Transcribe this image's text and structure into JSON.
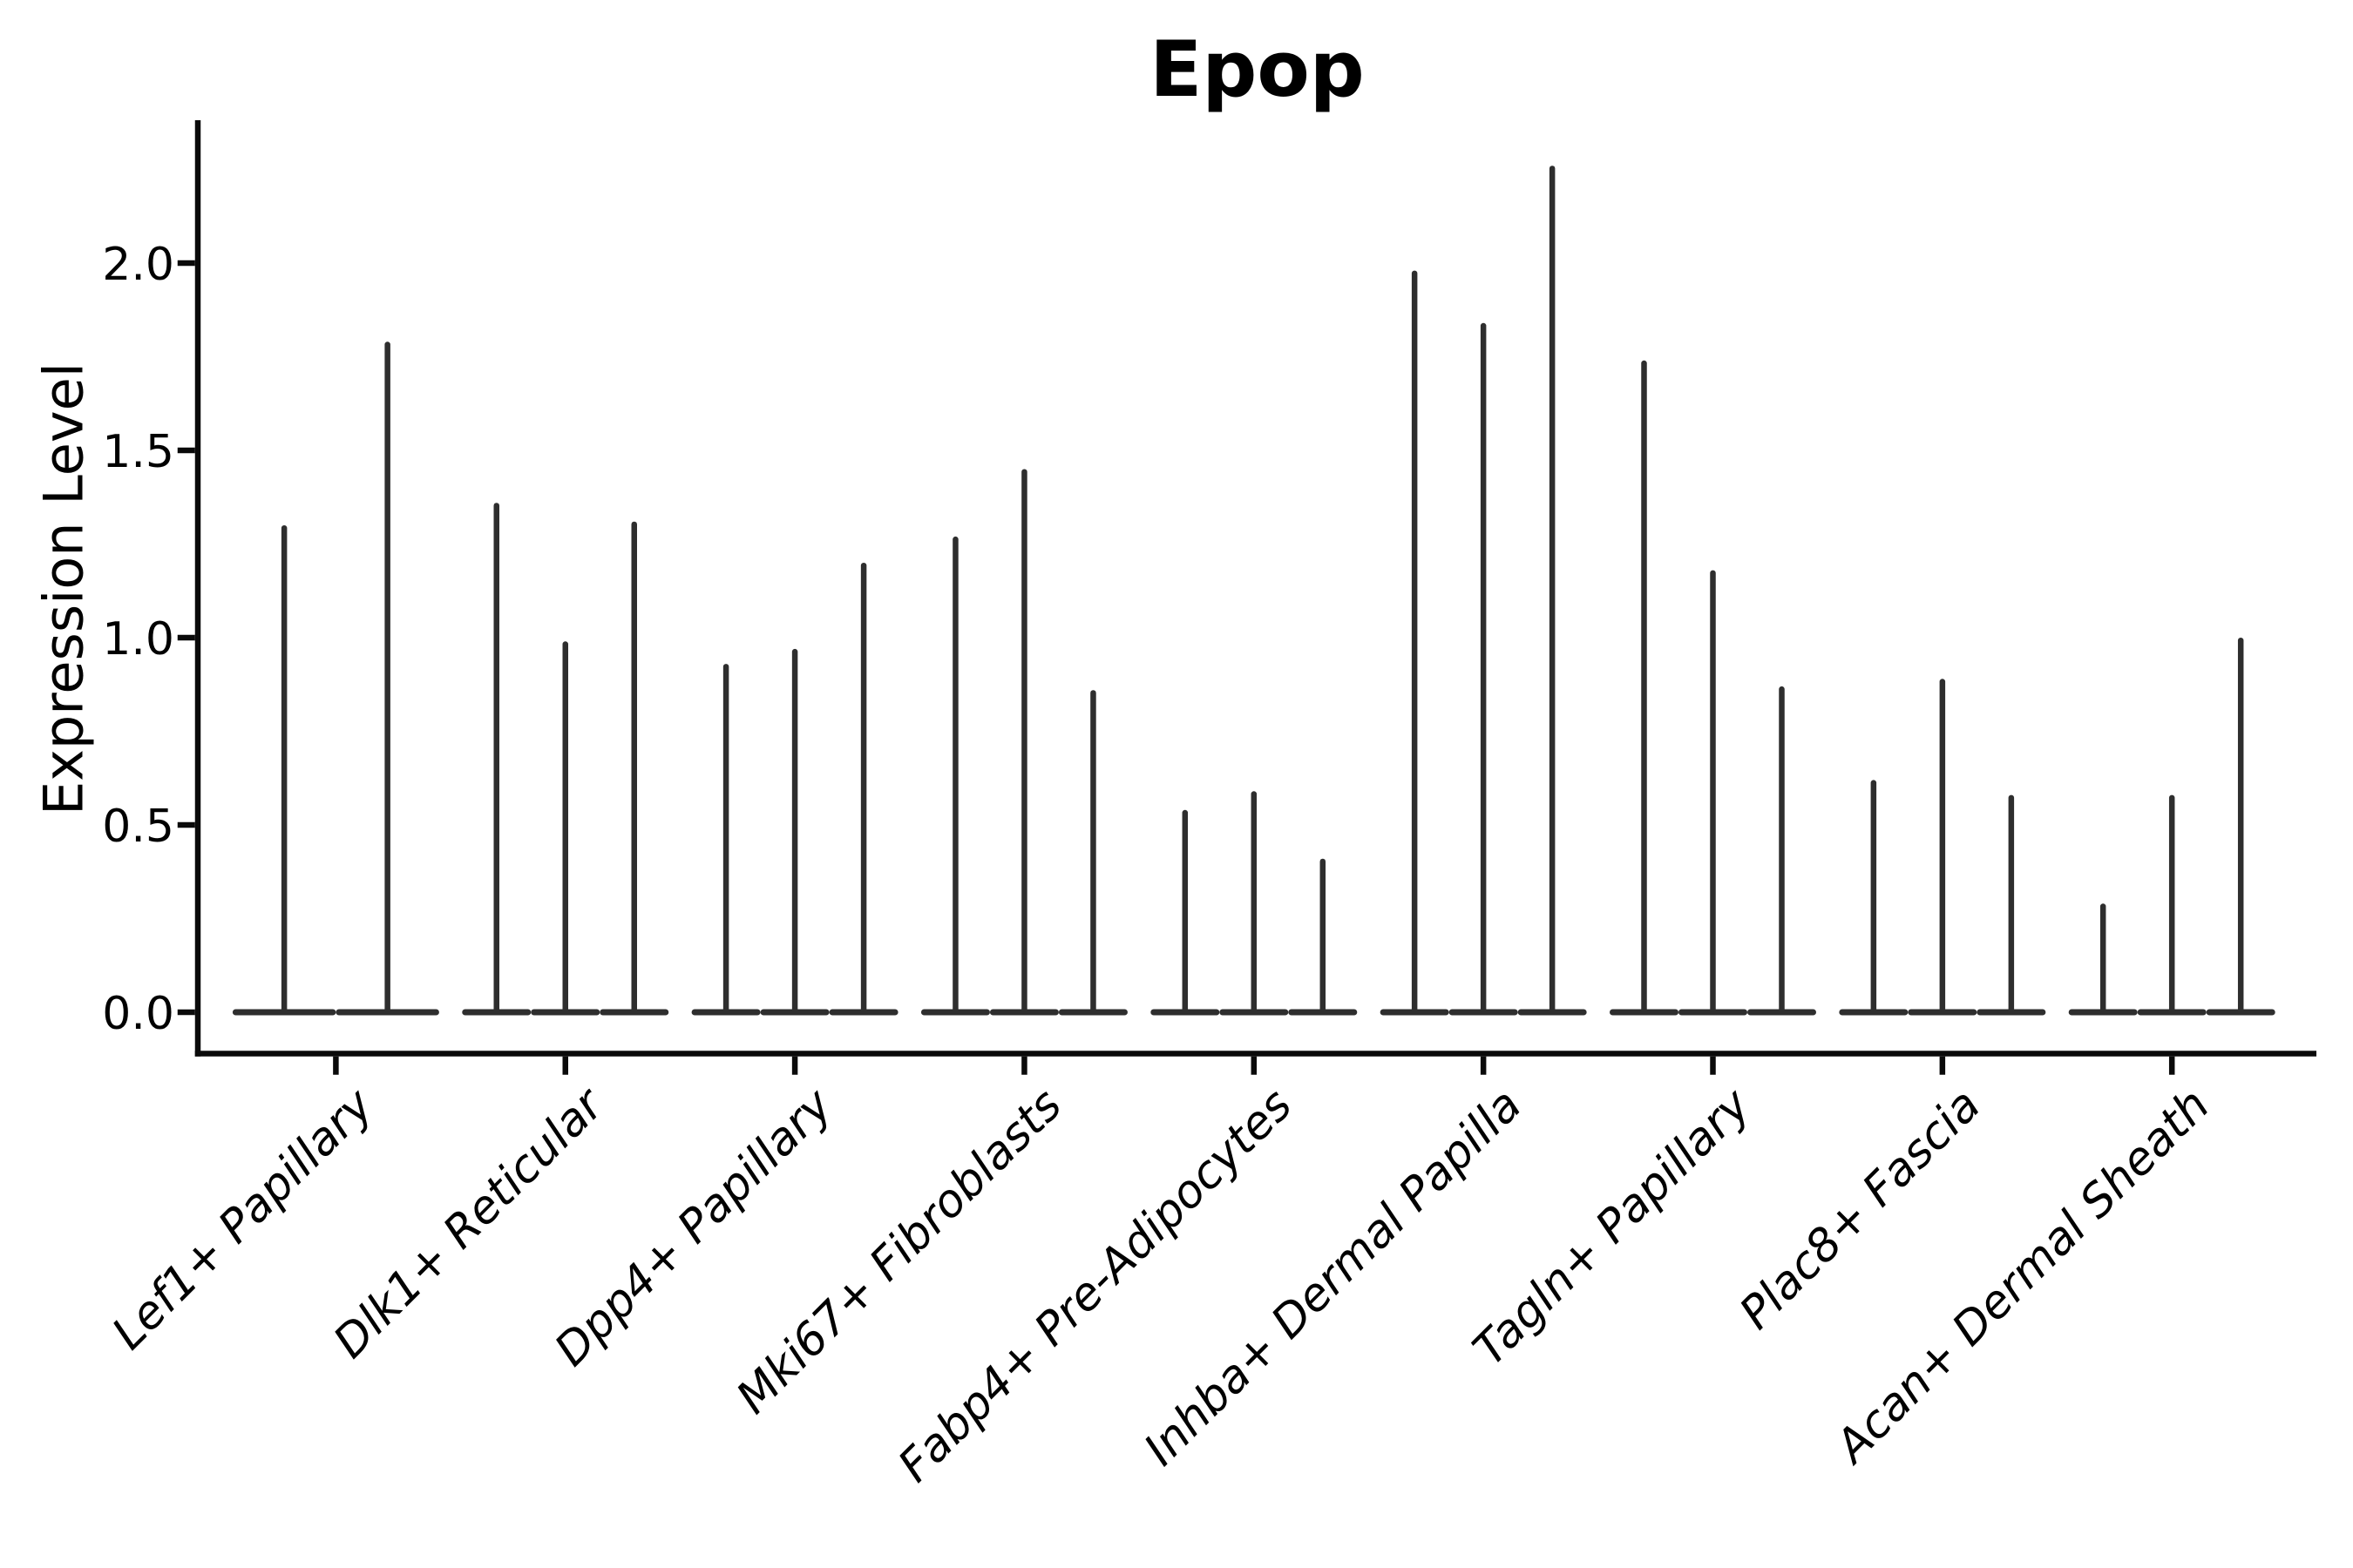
{
  "figure": {
    "title": "Epop",
    "y_axis": {
      "label": "Expression Level",
      "tick_labels": [
        "0.0",
        "0.5",
        "1.0",
        "1.5",
        "2.0"
      ]
    }
  },
  "chart_data": {
    "type": "violin",
    "title": "Epop",
    "xlabel": "",
    "ylabel": "Expression Level",
    "categories": [
      "Lef1+ Papillary",
      "Dlk1+ Reticular",
      "Dpp4+ Papillary",
      "Mki67+ Fibroblasts",
      "Fabp4+ Pre-Adipocytes",
      "Inhba+ Dermal Papilla",
      "Tagln+ Papillary",
      "Plac8+ Fascia",
      "Acan+ Dermal Sheath"
    ],
    "values_per_category": [
      [
        1.3,
        1.79
      ],
      [
        1.36,
        0.99,
        1.31
      ],
      [
        0.93,
        0.97,
        1.2
      ],
      [
        1.27,
        1.45,
        0.86
      ],
      [
        0.54,
        0.59,
        0.41
      ],
      [
        1.98,
        1.84,
        2.26
      ],
      [
        1.74,
        1.18,
        0.87
      ],
      [
        0.62,
        0.89,
        0.58
      ],
      [
        0.29,
        0.58,
        1.0
      ]
    ],
    "violin_shape_note": "each violin is a flat wide base at expression 0 with a thin vertical spike rising to its listed max expression value",
    "yticks": [
      0.0,
      0.5,
      1.0,
      1.5,
      2.0
    ],
    "ylim": [
      -0.11,
      2.37
    ],
    "grid": false,
    "legend": null,
    "colors": {
      "violin": "#2e2e2e",
      "axis": "#0a0a0a",
      "text": "#000000",
      "background": "#ffffff"
    }
  }
}
